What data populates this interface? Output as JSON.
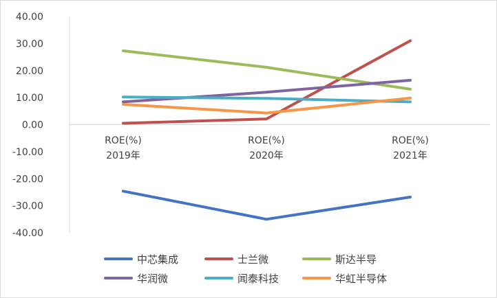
{
  "chart_data": {
    "type": "line",
    "categories": [
      [
        "ROE(%)",
        "2019年"
      ],
      [
        "ROE(%)",
        "2020年"
      ],
      [
        "ROE(%)",
        "2021年"
      ]
    ],
    "ylim": [
      -40,
      40
    ],
    "ytick_step": 10,
    "ytick_labels": [
      "40.00",
      "30.00",
      "20.00",
      "10.00",
      "0.00",
      "-10.00",
      "-20.00",
      "-30.00",
      "-40.00"
    ],
    "grid": false,
    "legend_position": "bottom",
    "series": [
      {
        "name": "中芯集成",
        "color": "#4472c4",
        "values": [
          -24.6,
          -35.0,
          -26.8
        ]
      },
      {
        "name": "士兰微",
        "color": "#c0504d",
        "values": [
          0.5,
          2.1,
          31.0
        ]
      },
      {
        "name": "斯达半导",
        "color": "#9bbb59",
        "values": [
          27.3,
          21.2,
          13.1
        ]
      },
      {
        "name": "华润微",
        "color": "#8064a2",
        "values": [
          8.4,
          12.0,
          16.4
        ]
      },
      {
        "name": "闻泰科技",
        "color": "#4bacc6",
        "values": [
          10.2,
          9.7,
          8.4
        ]
      },
      {
        "name": "华虹半导体",
        "color": "#f79646",
        "values": [
          7.5,
          4.3,
          9.8
        ]
      }
    ]
  }
}
